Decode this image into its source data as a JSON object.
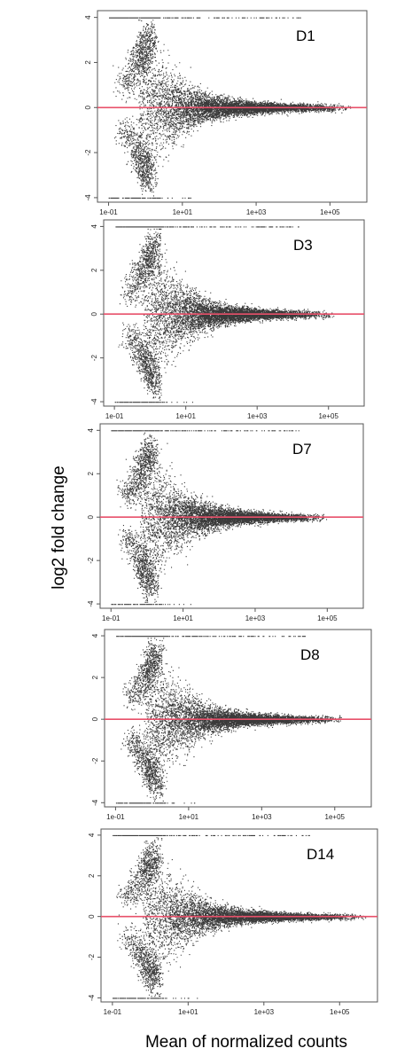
{
  "chart_data": {
    "type": "scatter",
    "xlabel": "Mean of normalized counts",
    "ylabel": "log2 fold change",
    "xscale": "log",
    "xlim": [
      0.05,
      1000000
    ],
    "ylim": [
      -4.2,
      4.3
    ],
    "x_ticks": [
      "1e-01",
      "1e+01",
      "1e+03",
      "1e+05"
    ],
    "y_ticks": [
      "4",
      "2",
      "0",
      "-2",
      "-4"
    ],
    "reference_line": {
      "y": 0,
      "color": "#e8506a"
    },
    "point_color": "#3a3a3a",
    "panels": [
      {
        "title": "D1",
        "n_points": 9000,
        "max_mean": 400000
      },
      {
        "title": "D3",
        "n_points": 8500,
        "max_mean": 150000
      },
      {
        "title": "D7",
        "n_points": 8500,
        "max_mean": 100000
      },
      {
        "title": "D8",
        "n_points": 8500,
        "max_mean": 150000
      },
      {
        "title": "D14",
        "n_points": 8500,
        "max_mean": 500000
      }
    ]
  }
}
